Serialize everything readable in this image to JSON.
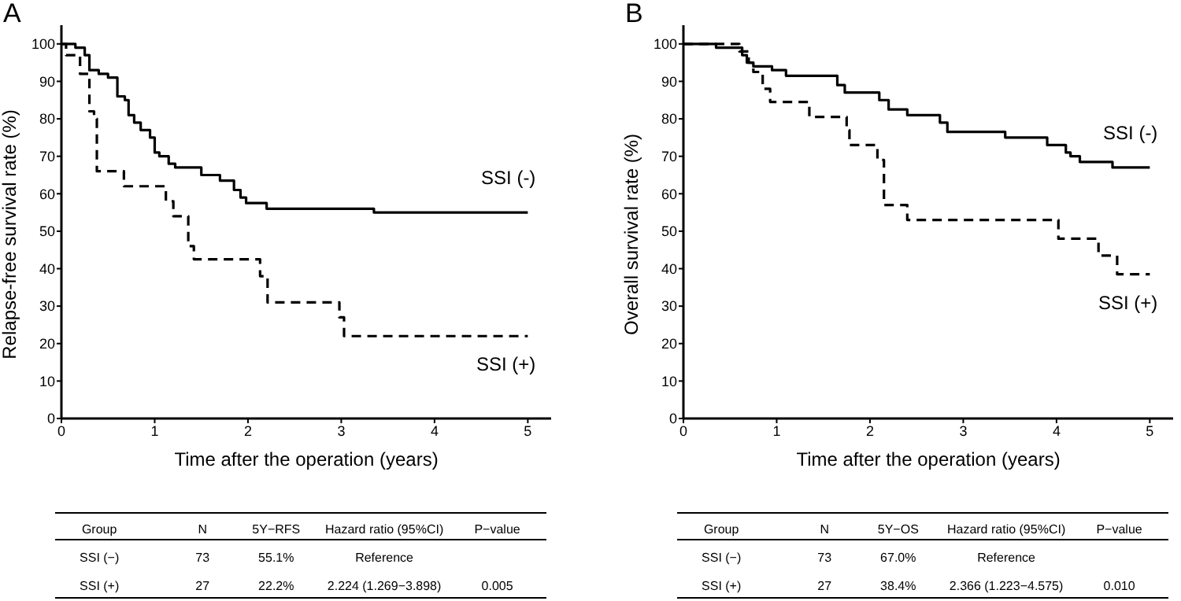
{
  "chart_data": [
    {
      "type": "step",
      "title": "A",
      "xlabel": "Time after the operation (years)",
      "ylabel": "Relapse-free survival rate (%)",
      "xlim": [
        0,
        5.25
      ],
      "ylim": [
        0,
        105
      ],
      "xticks": [
        0,
        1,
        2,
        3,
        4,
        5
      ],
      "yticks": [
        0,
        10,
        20,
        30,
        40,
        50,
        60,
        70,
        80,
        90,
        100
      ],
      "grid": false,
      "series": [
        {
          "name": "SSI (-)",
          "color": "#000000",
          "line_style": "solid",
          "x": [
            0,
            0.15,
            0.25,
            0.3,
            0.4,
            0.5,
            0.6,
            0.68,
            0.72,
            0.78,
            0.85,
            0.95,
            1.0,
            1.05,
            1.15,
            1.22,
            1.5,
            1.7,
            1.85,
            1.92,
            1.98,
            2.2,
            3.35,
            5
          ],
          "values": [
            100,
            99,
            97,
            93,
            92,
            91,
            86,
            85,
            81,
            79,
            77,
            75,
            71,
            70,
            68,
            67,
            65,
            63.5,
            61,
            59,
            57.5,
            56,
            55,
            55
          ]
        },
        {
          "name": "SSI (+)",
          "color": "#000000",
          "line_style": "dashed",
          "x": [
            0,
            0.05,
            0.2,
            0.3,
            0.35,
            0.38,
            0.67,
            1.12,
            1.2,
            1.36,
            1.42,
            2.13,
            2.21,
            2.98,
            3.03,
            5
          ],
          "values": [
            100,
            97,
            92,
            82,
            80,
            66,
            62,
            58,
            54,
            46,
            42.5,
            38,
            31,
            27,
            22,
            22
          ]
        }
      ],
      "annotations": [
        "Group",
        "N",
        "5Y−RFS",
        "Hazard ratio (95%CI)",
        "P−value",
        "SSI (−)",
        "73",
        "55.1%",
        "Reference",
        "SSI (+)",
        "27",
        "22.2%",
        "2.224 (1.269−3.898)",
        "0.005"
      ]
    },
    {
      "type": "step",
      "title": "B",
      "xlabel": "Time after the operation (years)",
      "ylabel": "Overall survival rate (%)",
      "xlim": [
        0,
        5.25
      ],
      "ylim": [
        0,
        105
      ],
      "xticks": [
        0,
        1,
        2,
        3,
        4,
        5
      ],
      "yticks": [
        0,
        10,
        20,
        30,
        40,
        50,
        60,
        70,
        80,
        90,
        100
      ],
      "grid": false,
      "series": [
        {
          "name": "SSI (-)",
          "color": "#000000",
          "line_style": "solid",
          "x": [
            0,
            0.35,
            0.63,
            0.68,
            0.75,
            0.95,
            1.1,
            1.65,
            1.73,
            2.1,
            2.2,
            2.4,
            2.75,
            2.83,
            3.45,
            3.9,
            4.1,
            4.15,
            4.25,
            4.6,
            5
          ],
          "values": [
            100,
            99,
            97,
            95,
            94,
            93,
            91.5,
            89,
            87,
            85,
            82.5,
            81,
            79,
            76.5,
            75,
            73,
            71,
            70,
            68.5,
            67,
            67
          ]
        },
        {
          "name": "SSI (+)",
          "color": "#000000",
          "line_style": "dashed",
          "x": [
            0,
            0.6,
            0.7,
            0.75,
            0.85,
            0.93,
            1.35,
            1.75,
            1.78,
            2.08,
            2.15,
            2.4,
            4.02,
            4.45,
            4.65,
            5
          ],
          "values": [
            100,
            98,
            95,
            92.5,
            88,
            84.5,
            80.5,
            77,
            73,
            69,
            57,
            53,
            48,
            43.5,
            38.5,
            38.5
          ]
        }
      ],
      "annotations": [
        "Group",
        "N",
        "5Y−OS",
        "Hazard ratio (95%CI)",
        "P−value",
        "SSI (−)",
        "73",
        "67.0%",
        "Reference",
        "SSI (+)",
        "27",
        "38.4%",
        "2.366 (1.223−4.575)",
        "0.010"
      ]
    }
  ]
}
